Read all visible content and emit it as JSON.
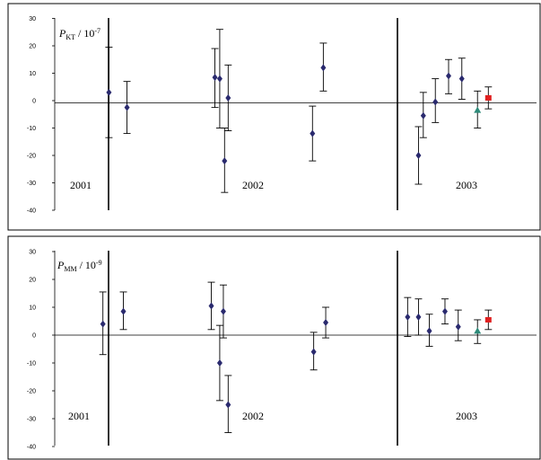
{
  "chart_data": [
    {
      "type": "scatter",
      "title": {
        "main": "P",
        "subscript": "KT",
        "divider": " / 10",
        "exponent": "-7"
      },
      "ylim": [
        -40,
        30
      ],
      "yticks": [
        30,
        20,
        10,
        0,
        -10,
        -20,
        -30,
        -40
      ],
      "periods": [
        "2001",
        "2002",
        "2003"
      ],
      "series": [
        {
          "marker": "diamond",
          "color": "#2a2a6e",
          "points": [
            {
              "x": 0.45,
              "y": 3,
              "low": -13.5,
              "high": 19.5
            },
            {
              "x": 0.6,
              "y": -2.5,
              "low": -12,
              "high": 7
            },
            {
              "x": 1.33,
              "y": 8.5,
              "low": -2.5,
              "high": 19
            },
            {
              "x": 1.37,
              "y": 8,
              "low": -10,
              "high": 26
            },
            {
              "x": 1.41,
              "y": -22,
              "low": -33.5,
              "high": -10
            },
            {
              "x": 1.44,
              "y": 1,
              "low": -11,
              "high": 13
            },
            {
              "x": 2.14,
              "y": -12,
              "low": -22,
              "high": -2
            },
            {
              "x": 2.23,
              "y": 12,
              "low": 3.5,
              "high": 21
            },
            {
              "x": 3.02,
              "y": -20,
              "low": -30.5,
              "high": -9.5
            },
            {
              "x": 3.06,
              "y": -5.5,
              "low": -13.5,
              "high": 3
            },
            {
              "x": 3.16,
              "y": -0.5,
              "low": -8,
              "high": 8
            },
            {
              "x": 3.27,
              "y": 9,
              "low": 2.5,
              "high": 15
            },
            {
              "x": 3.38,
              "y": 8,
              "low": 0.5,
              "high": 15.5
            }
          ]
        },
        {
          "marker": "triangle",
          "color": "#2e8b7a",
          "points": [
            {
              "x": 3.51,
              "y": -3.5,
              "low": -10,
              "high": 3.5
            }
          ]
        },
        {
          "marker": "square",
          "color": "#e02020",
          "points": [
            {
              "x": 3.6,
              "y": 1,
              "low": -3,
              "high": 5
            }
          ]
        }
      ]
    },
    {
      "type": "scatter",
      "title": {
        "main": "P",
        "subscript": "MM",
        "divider": " / 10",
        "exponent": "-9"
      },
      "ylim": [
        -40,
        30
      ],
      "yticks": [
        30,
        20,
        10,
        0,
        -10,
        -20,
        -30,
        -40
      ],
      "periods": [
        "2001",
        "2002",
        "2003"
      ],
      "series": [
        {
          "marker": "diamond",
          "color": "#2a2a6e",
          "points": [
            {
              "x": 0.4,
              "y": 4,
              "low": -7,
              "high": 15.5
            },
            {
              "x": 0.57,
              "y": 8.5,
              "low": 2,
              "high": 15.5
            },
            {
              "x": 1.3,
              "y": 10.5,
              "low": 2,
              "high": 19
            },
            {
              "x": 1.37,
              "y": -10,
              "low": -23.5,
              "high": 3.5
            },
            {
              "x": 1.4,
              "y": 8.5,
              "low": -1,
              "high": 18
            },
            {
              "x": 1.44,
              "y": -25,
              "low": -35,
              "high": -14.5
            },
            {
              "x": 2.15,
              "y": -6,
              "low": -12.5,
              "high": 1
            },
            {
              "x": 2.25,
              "y": 4.5,
              "low": -1,
              "high": 10
            },
            {
              "x": 2.93,
              "y": 6.5,
              "low": -0.5,
              "high": 13.5
            },
            {
              "x": 3.02,
              "y": 6.5,
              "low": 0,
              "high": 13
            },
            {
              "x": 3.11,
              "y": 1.5,
              "low": -4,
              "high": 7.5
            },
            {
              "x": 3.24,
              "y": 8.5,
              "low": 4,
              "high": 13
            },
            {
              "x": 3.35,
              "y": 3,
              "low": -2,
              "high": 9
            }
          ]
        },
        {
          "marker": "triangle",
          "color": "#2e8b7a",
          "points": [
            {
              "x": 3.51,
              "y": 1.5,
              "low": -3,
              "high": 5.5
            }
          ]
        },
        {
          "marker": "square",
          "color": "#e02020",
          "points": [
            {
              "x": 3.6,
              "y": 5.5,
              "low": 2,
              "high": 9
            }
          ]
        }
      ]
    }
  ]
}
